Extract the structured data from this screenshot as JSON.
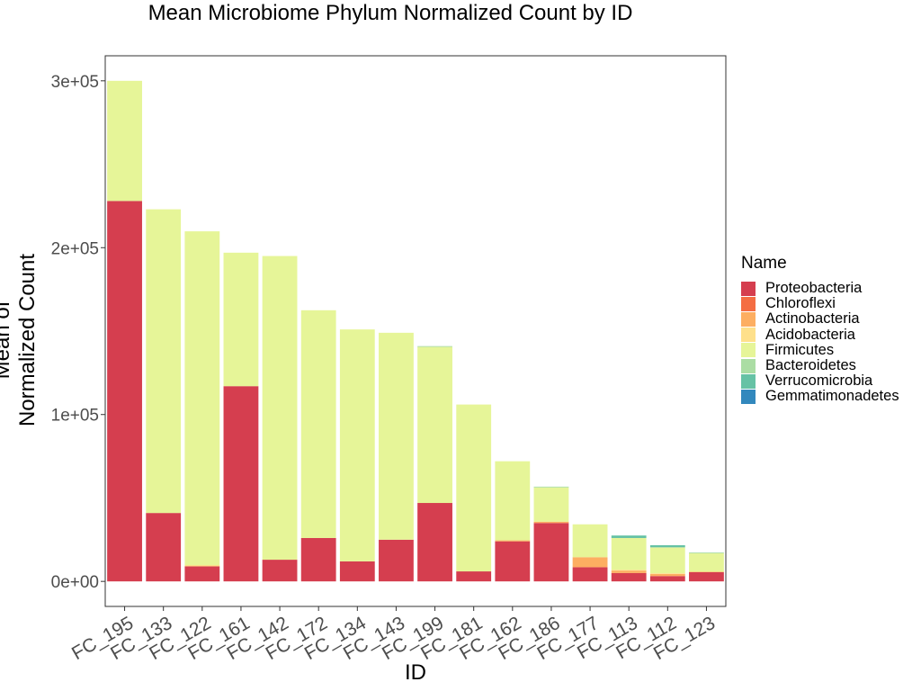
{
  "chart_data": {
    "type": "bar",
    "stacked": true,
    "title": "Mean Microbiome Phylum Normalized Count by ID",
    "xlabel": "ID",
    "ylabel": "Mean of Normalized Count",
    "ylim": [
      -15000,
      315000
    ],
    "y_ticks": [
      0,
      100000,
      200000,
      300000
    ],
    "y_tick_labels": [
      "0e+00",
      "1e+05",
      "2e+05",
      "3e+05"
    ],
    "grid": false,
    "legend": {
      "title": "Name",
      "placement": "right"
    },
    "categories": [
      "FC_195",
      "FC_133",
      "FC_122",
      "FC_161",
      "FC_142",
      "FC_172",
      "FC_134",
      "FC_143",
      "FC_199",
      "FC_181",
      "FC_162",
      "FC_186",
      "FC_177",
      "FC_113",
      "FC_112",
      "FC_123"
    ],
    "series": [
      {
        "name": "Proteobacteria",
        "color": "#D53E4F",
        "values": [
          228000,
          41000,
          9000,
          117000,
          13000,
          26000,
          12000,
          25000,
          47000,
          6000,
          24000,
          35000,
          8500,
          5000,
          3200,
          5500
        ]
      },
      {
        "name": "Chloroflexi",
        "color": "#F46D43",
        "values": [
          0,
          0,
          0,
          0,
          0,
          0,
          0,
          0,
          0,
          0,
          0,
          0,
          0,
          0,
          0,
          0
        ]
      },
      {
        "name": "Actinobacteria",
        "color": "#FDAE61",
        "values": [
          0,
          0,
          0,
          0,
          0,
          0,
          0,
          0,
          0,
          0,
          600,
          800,
          6000,
          1500,
          1300,
          300
        ]
      },
      {
        "name": "Acidobacteria",
        "color": "#FEE08B",
        "values": [
          0,
          0,
          800,
          0,
          0,
          0,
          0,
          0,
          0,
          0,
          0,
          0,
          0,
          500,
          400,
          0
        ]
      },
      {
        "name": "Firmicutes",
        "color": "#E6F598",
        "values": [
          72000,
          182000,
          200000,
          80000,
          182000,
          136500,
          139000,
          124000,
          93500,
          100000,
          47400,
          20500,
          19700,
          19000,
          15500,
          11000
        ]
      },
      {
        "name": "Bacteroidetes",
        "color": "#ABDDA4",
        "values": [
          0,
          0,
          0,
          0,
          0,
          0,
          0,
          0,
          500,
          0,
          0,
          500,
          0,
          0,
          0,
          500
        ]
      },
      {
        "name": "Verrucomicrobia",
        "color": "#66C2A5",
        "values": [
          0,
          0,
          0,
          0,
          0,
          0,
          0,
          0,
          0,
          0,
          0,
          0,
          0,
          1500,
          1300,
          0
        ]
      },
      {
        "name": "Gemmatimonadetes",
        "color": "#3288BD",
        "values": [
          0,
          0,
          0,
          0,
          0,
          0,
          0,
          0,
          0,
          0,
          0,
          0,
          0,
          0,
          0,
          0
        ]
      }
    ]
  }
}
